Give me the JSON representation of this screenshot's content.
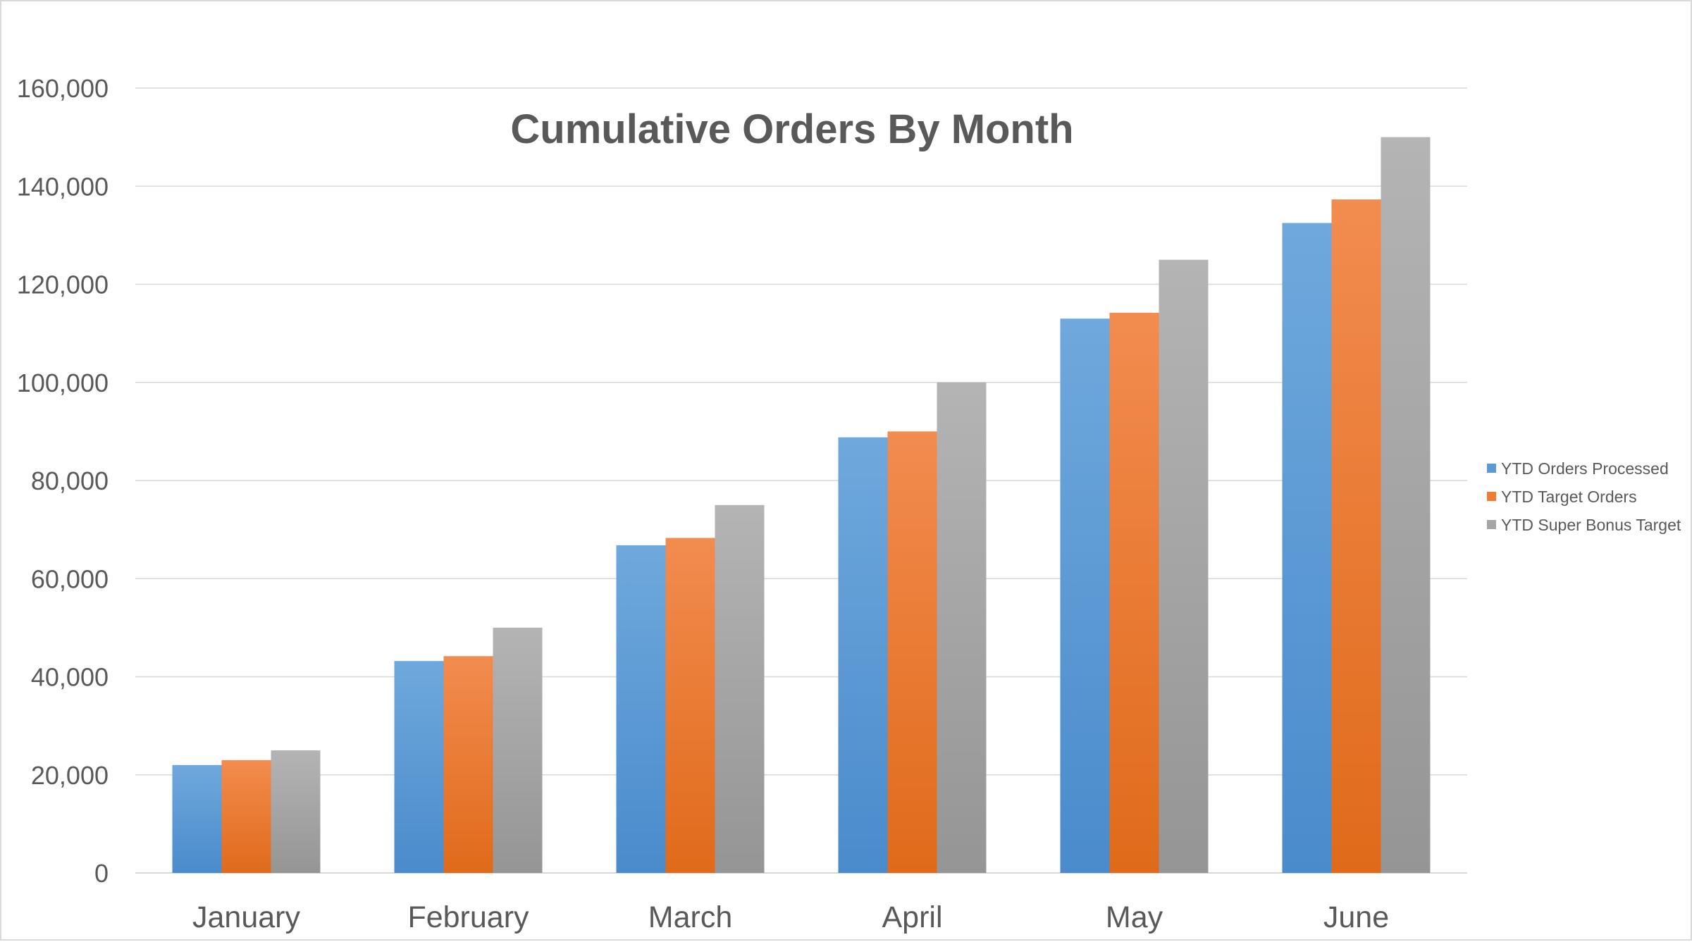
{
  "chart_data": {
    "type": "bar",
    "title": "Cumulative Orders By Month",
    "xlabel": "",
    "ylabel": "",
    "categories": [
      "January",
      "February",
      "March",
      "April",
      "May",
      "June"
    ],
    "series": [
      {
        "name": "YTD Orders Processed",
        "color": "#5b9bd5",
        "values": [
          22000,
          43200,
          66800,
          88800,
          113000,
          132500
        ]
      },
      {
        "name": "YTD Target Orders",
        "color": "#ed7d31",
        "values": [
          23000,
          44200,
          68300,
          90000,
          114200,
          137300
        ]
      },
      {
        "name": "YTD Super Bonus Target",
        "color": "#a5a5a5",
        "values": [
          25000,
          50000,
          75000,
          100000,
          125000,
          150000
        ]
      }
    ],
    "ylim": [
      0,
      160000
    ],
    "yticks": [
      0,
      20000,
      40000,
      60000,
      80000,
      100000,
      120000,
      140000,
      160000
    ],
    "ytick_labels": [
      "0",
      "20,000",
      "40,000",
      "60,000",
      "80,000",
      "100,000",
      "120,000",
      "140,000",
      "160,000"
    ],
    "grid": true,
    "legend_position": "right"
  }
}
